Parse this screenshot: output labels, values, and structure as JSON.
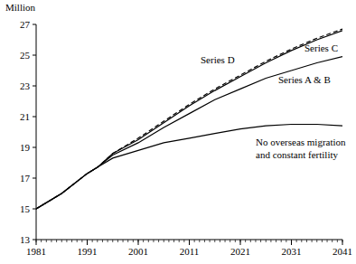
{
  "chart_data": {
    "type": "line",
    "y_label": "Million",
    "x": [
      1981,
      1986,
      1991,
      1993,
      1996,
      2001,
      2006,
      2011,
      2016,
      2021,
      2026,
      2031,
      2036,
      2041
    ],
    "series": [
      {
        "name": "Series D",
        "color": "#000000",
        "line_style": "dashed",
        "values": [
          15.0,
          16.0,
          17.3,
          17.7,
          18.6,
          19.6,
          20.7,
          21.8,
          22.8,
          23.7,
          24.6,
          25.4,
          26.1,
          26.7
        ]
      },
      {
        "name": "Series C",
        "color": "#000000",
        "line_style": "solid",
        "values": [
          15.0,
          16.0,
          17.3,
          17.7,
          18.6,
          19.5,
          20.6,
          21.7,
          22.7,
          23.6,
          24.5,
          25.3,
          26.0,
          26.6
        ]
      },
      {
        "name": "Series A & B",
        "color": "#000000",
        "line_style": "solid",
        "values": [
          15.0,
          16.0,
          17.3,
          17.7,
          18.5,
          19.3,
          20.3,
          21.2,
          22.1,
          22.8,
          23.5,
          24.0,
          24.5,
          24.9
        ]
      },
      {
        "name": "No overseas migration and constant fertility",
        "color": "#000000",
        "line_style": "solid",
        "values": [
          15.0,
          16.0,
          17.3,
          17.7,
          18.3,
          18.8,
          19.3,
          19.6,
          19.9,
          20.2,
          20.4,
          20.5,
          20.5,
          20.4
        ]
      }
    ],
    "xlim": [
      1981,
      2041
    ],
    "xticks": [
      1981,
      1991,
      2001,
      2011,
      2021,
      2031,
      2041
    ],
    "ylim": [
      13,
      27
    ],
    "yticks": [
      13,
      15,
      17,
      19,
      21,
      23,
      25,
      27
    ],
    "grid": false
  }
}
